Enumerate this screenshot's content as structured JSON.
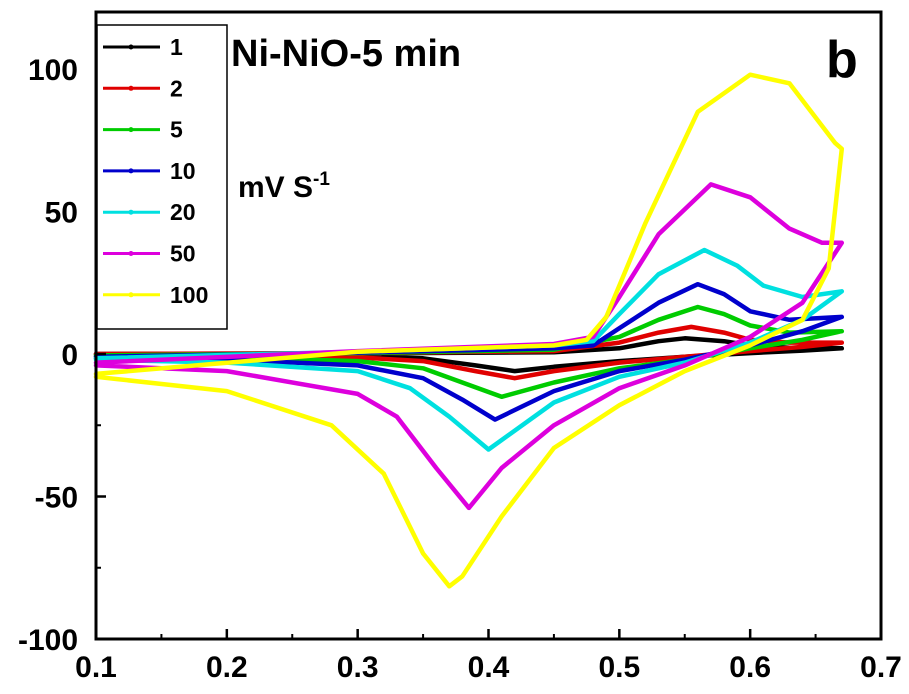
{
  "chart_data": {
    "type": "line",
    "title": "Ni-NiO-5 min",
    "panel_label": "b",
    "unit_label": {
      "base": "mV S",
      "superscript": "-1"
    },
    "xlabel": "",
    "ylabel": "",
    "xlim": [
      0.1,
      0.7
    ],
    "ylim": [
      -100,
      120
    ],
    "xticks": [
      "0.1",
      "0.2",
      "0.3",
      "0.4",
      "0.5",
      "0.6",
      "0.7"
    ],
    "yticks": [
      "-100",
      "-50",
      "0",
      "50",
      "100"
    ],
    "legend_position": "top-left",
    "grid": false,
    "series": [
      {
        "name": "1",
        "color": "#000000",
        "anodic": [
          [
            0.1,
            0
          ],
          [
            0.3,
            0.2
          ],
          [
            0.45,
            0.6
          ],
          [
            0.5,
            2
          ],
          [
            0.53,
            4.5
          ],
          [
            0.55,
            5.5
          ],
          [
            0.58,
            4.5
          ],
          [
            0.6,
            3
          ],
          [
            0.63,
            2.2
          ],
          [
            0.67,
            2
          ]
        ],
        "cathodic": [
          [
            0.67,
            2
          ],
          [
            0.64,
            1.2
          ],
          [
            0.6,
            0.3
          ],
          [
            0.55,
            -1
          ],
          [
            0.5,
            -2.5
          ],
          [
            0.45,
            -4.5
          ],
          [
            0.42,
            -6
          ],
          [
            0.39,
            -4
          ],
          [
            0.35,
            -1.5
          ],
          [
            0.3,
            -0.8
          ],
          [
            0.2,
            -0.3
          ],
          [
            0.1,
            0
          ]
        ]
      },
      {
        "name": "2",
        "color": "#e00000",
        "anodic": [
          [
            0.1,
            0
          ],
          [
            0.3,
            0.3
          ],
          [
            0.45,
            1
          ],
          [
            0.5,
            4
          ],
          [
            0.53,
            7.5
          ],
          [
            0.555,
            9.5
          ],
          [
            0.58,
            7.5
          ],
          [
            0.6,
            5
          ],
          [
            0.63,
            4
          ],
          [
            0.67,
            4
          ]
        ],
        "cathodic": [
          [
            0.67,
            4
          ],
          [
            0.64,
            2.5
          ],
          [
            0.6,
            1
          ],
          [
            0.55,
            -1
          ],
          [
            0.5,
            -3
          ],
          [
            0.45,
            -6
          ],
          [
            0.42,
            -8.5
          ],
          [
            0.39,
            -6
          ],
          [
            0.35,
            -2.5
          ],
          [
            0.3,
            -1.2
          ],
          [
            0.2,
            -0.6
          ],
          [
            0.1,
            -0.2
          ]
        ]
      },
      {
        "name": "5",
        "color": "#00cc00",
        "anodic": [
          [
            0.1,
            -0.5
          ],
          [
            0.3,
            0.3
          ],
          [
            0.45,
            1.5
          ],
          [
            0.5,
            6
          ],
          [
            0.53,
            12
          ],
          [
            0.56,
            16.5
          ],
          [
            0.58,
            14
          ],
          [
            0.6,
            10
          ],
          [
            0.63,
            7.5
          ],
          [
            0.67,
            8
          ]
        ],
        "cathodic": [
          [
            0.67,
            8
          ],
          [
            0.64,
            5
          ],
          [
            0.6,
            2
          ],
          [
            0.55,
            -2
          ],
          [
            0.5,
            -5
          ],
          [
            0.45,
            -10
          ],
          [
            0.41,
            -15
          ],
          [
            0.38,
            -10
          ],
          [
            0.35,
            -5
          ],
          [
            0.3,
            -2.5
          ],
          [
            0.2,
            -1.2
          ],
          [
            0.1,
            -0.8
          ]
        ]
      },
      {
        "name": "10",
        "color": "#0000cc",
        "anodic": [
          [
            0.1,
            -1
          ],
          [
            0.3,
            0.5
          ],
          [
            0.45,
            2
          ],
          [
            0.48,
            3
          ],
          [
            0.5,
            9
          ],
          [
            0.53,
            18
          ],
          [
            0.56,
            24.5
          ],
          [
            0.58,
            21
          ],
          [
            0.6,
            15
          ],
          [
            0.63,
            12
          ],
          [
            0.67,
            13
          ]
        ],
        "cathodic": [
          [
            0.67,
            13
          ],
          [
            0.64,
            8
          ],
          [
            0.6,
            3
          ],
          [
            0.55,
            -2
          ],
          [
            0.5,
            -6
          ],
          [
            0.45,
            -13
          ],
          [
            0.405,
            -23
          ],
          [
            0.38,
            -16
          ],
          [
            0.35,
            -8.5
          ],
          [
            0.3,
            -4
          ],
          [
            0.2,
            -2
          ],
          [
            0.1,
            -1.5
          ]
        ]
      },
      {
        "name": "20",
        "color": "#00e0e0",
        "anodic": [
          [
            0.1,
            -1.5
          ],
          [
            0.3,
            0.8
          ],
          [
            0.45,
            3
          ],
          [
            0.48,
            4.5
          ],
          [
            0.5,
            14
          ],
          [
            0.53,
            28
          ],
          [
            0.565,
            36.5
          ],
          [
            0.59,
            31
          ],
          [
            0.61,
            24
          ],
          [
            0.64,
            20
          ],
          [
            0.67,
            22
          ]
        ],
        "cathodic": [
          [
            0.67,
            22
          ],
          [
            0.64,
            12
          ],
          [
            0.6,
            4
          ],
          [
            0.55,
            -3
          ],
          [
            0.5,
            -8
          ],
          [
            0.45,
            -17
          ],
          [
            0.4,
            -33.5
          ],
          [
            0.37,
            -22
          ],
          [
            0.34,
            -12
          ],
          [
            0.3,
            -6
          ],
          [
            0.2,
            -3
          ],
          [
            0.1,
            -2
          ]
        ]
      },
      {
        "name": "50",
        "color": "#dd00dd",
        "anodic": [
          [
            0.1,
            -3
          ],
          [
            0.3,
            1
          ],
          [
            0.45,
            3.5
          ],
          [
            0.48,
            6
          ],
          [
            0.5,
            20
          ],
          [
            0.53,
            42
          ],
          [
            0.57,
            59.5
          ],
          [
            0.6,
            55
          ],
          [
            0.63,
            44
          ],
          [
            0.655,
            39
          ],
          [
            0.67,
            39
          ]
        ],
        "cathodic": [
          [
            0.67,
            39
          ],
          [
            0.64,
            18
          ],
          [
            0.6,
            6
          ],
          [
            0.55,
            -4
          ],
          [
            0.5,
            -12
          ],
          [
            0.45,
            -25
          ],
          [
            0.41,
            -40
          ],
          [
            0.385,
            -54
          ],
          [
            0.36,
            -40
          ],
          [
            0.33,
            -22
          ],
          [
            0.3,
            -14
          ],
          [
            0.2,
            -6
          ],
          [
            0.1,
            -4
          ]
        ]
      },
      {
        "name": "100",
        "color": "#ffff00",
        "anodic": [
          [
            0.1,
            -7
          ],
          [
            0.3,
            0.8
          ],
          [
            0.45,
            3
          ],
          [
            0.475,
            5
          ],
          [
            0.49,
            13
          ],
          [
            0.52,
            46
          ],
          [
            0.56,
            85
          ],
          [
            0.6,
            98
          ],
          [
            0.63,
            95
          ],
          [
            0.65,
            83
          ],
          [
            0.665,
            74
          ],
          [
            0.67,
            72
          ]
        ],
        "cathodic": [
          [
            0.67,
            72
          ],
          [
            0.66,
            30
          ],
          [
            0.64,
            12
          ],
          [
            0.6,
            3
          ],
          [
            0.55,
            -6
          ],
          [
            0.5,
            -18
          ],
          [
            0.45,
            -33
          ],
          [
            0.41,
            -57
          ],
          [
            0.38,
            -78
          ],
          [
            0.37,
            -81.5
          ],
          [
            0.35,
            -70
          ],
          [
            0.32,
            -42
          ],
          [
            0.28,
            -25
          ],
          [
            0.2,
            -13
          ],
          [
            0.1,
            -8
          ]
        ]
      }
    ]
  }
}
